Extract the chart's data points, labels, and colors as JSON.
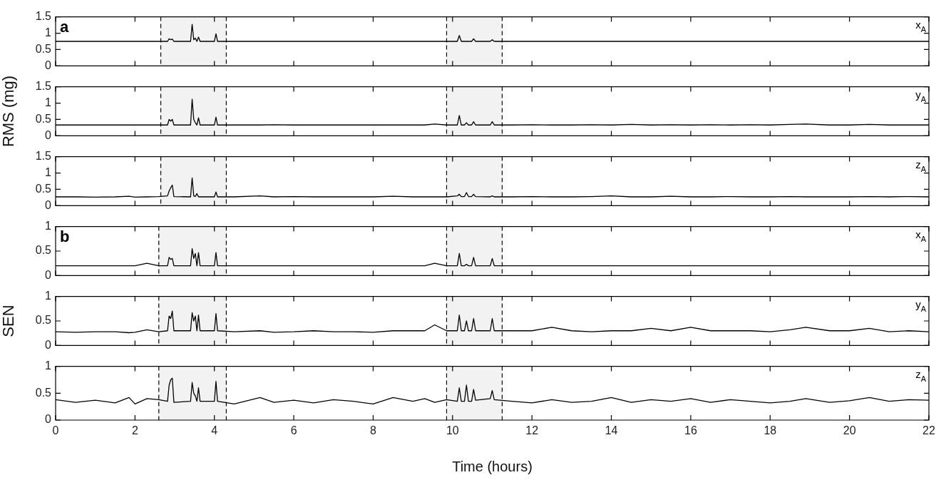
{
  "chart_data": [
    {
      "type": "line",
      "annotations": [
        "a"
      ],
      "tick_labels": "y",
      "xlim": [
        0,
        22
      ],
      "xticks": [
        0,
        2,
        4,
        6,
        8,
        10,
        12,
        14,
        16,
        18,
        20,
        22
      ],
      "ylim": [
        0,
        1.5
      ],
      "yticks": [
        0,
        0.5,
        1,
        1.5
      ],
      "bands": [
        {
          "axis": "x",
          "from": 2.65,
          "to": 4.3,
          "color": "#f2f2f2"
        },
        {
          "axis": "x",
          "from": 9.85,
          "to": 11.25,
          "color": "#f2f2f2"
        }
      ],
      "x": [
        0,
        0.5,
        1,
        1.5,
        1.85,
        2,
        2.3,
        2.6,
        2.82,
        2.86,
        2.9,
        2.94,
        2.98,
        3.4,
        3.44,
        3.48,
        3.52,
        3.56,
        3.6,
        3.64,
        3.68,
        4.0,
        4.04,
        4.08,
        4.5,
        5.15,
        5.5,
        6,
        6.5,
        7,
        7.5,
        8,
        8.5,
        9,
        9.3,
        9.55,
        9.85,
        10.12,
        10.17,
        10.22,
        10.3,
        10.35,
        10.4,
        10.48,
        10.53,
        10.58,
        10.95,
        11,
        11.05,
        11.5,
        12,
        12.5,
        13,
        13.5,
        14,
        14.5,
        15,
        15.5,
        16,
        16.5,
        17,
        17.5,
        18,
        18.5,
        18.9,
        19.5,
        20,
        20.5,
        21,
        21.5,
        22
      ],
      "series": [
        {
          "name": "x$_{A}$",
          "color": "#000000",
          "values": [
            0.75,
            0.75,
            0.75,
            0.75,
            0.75,
            0.75,
            0.75,
            0.75,
            0.75,
            0.83,
            0.8,
            0.82,
            0.75,
            0.75,
            1.27,
            0.8,
            0.85,
            0.75,
            0.88,
            0.75,
            0.75,
            0.75,
            0.98,
            0.75,
            0.75,
            0.75,
            0.75,
            0.75,
            0.75,
            0.75,
            0.75,
            0.75,
            0.75,
            0.75,
            0.75,
            0.75,
            0.75,
            0.75,
            0.93,
            0.75,
            0.75,
            0.75,
            0.75,
            0.75,
            0.83,
            0.75,
            0.75,
            0.8,
            0.75,
            0.75,
            0.75,
            0.75,
            0.75,
            0.75,
            0.75,
            0.75,
            0.75,
            0.75,
            0.75,
            0.75,
            0.75,
            0.75,
            0.75,
            0.75,
            0.75,
            0.75,
            0.75,
            0.75,
            0.75,
            0.75,
            0.75
          ]
        }
      ]
    },
    {
      "type": "line",
      "ylabel": "RMS (mg)",
      "tick_labels": "y",
      "xlim": [
        0,
        22
      ],
      "xticks": [
        0,
        2,
        4,
        6,
        8,
        10,
        12,
        14,
        16,
        18,
        20,
        22
      ],
      "ylim": [
        0,
        1.5
      ],
      "yticks": [
        0,
        0.5,
        1,
        1.5
      ],
      "bands": [
        {
          "axis": "x",
          "from": 2.65,
          "to": 4.3,
          "color": "#f2f2f2"
        },
        {
          "axis": "x",
          "from": 9.85,
          "to": 11.25,
          "color": "#f2f2f2"
        }
      ],
      "x": [
        0,
        0.5,
        1,
        1.5,
        1.85,
        2,
        2.3,
        2.6,
        2.82,
        2.86,
        2.9,
        2.94,
        2.98,
        3.4,
        3.44,
        3.48,
        3.52,
        3.56,
        3.6,
        3.64,
        3.68,
        4.0,
        4.04,
        4.08,
        4.5,
        5.15,
        5.5,
        6,
        6.5,
        7,
        7.5,
        8,
        8.5,
        9,
        9.3,
        9.55,
        9.85,
        10.12,
        10.17,
        10.22,
        10.3,
        10.35,
        10.4,
        10.48,
        10.53,
        10.58,
        10.95,
        11,
        11.05,
        11.5,
        12,
        12.5,
        13,
        13.5,
        14,
        14.5,
        15,
        15.5,
        16,
        16.5,
        17,
        17.5,
        18,
        18.5,
        18.9,
        19.5,
        20,
        20.5,
        21,
        21.5,
        22
      ],
      "series": [
        {
          "name": "y$_{A}$",
          "color": "#000000",
          "values": [
            0.33,
            0.33,
            0.33,
            0.33,
            0.33,
            0.33,
            0.33,
            0.33,
            0.33,
            0.5,
            0.45,
            0.5,
            0.33,
            0.33,
            1.12,
            0.5,
            0.4,
            0.33,
            0.55,
            0.33,
            0.33,
            0.33,
            0.57,
            0.33,
            0.33,
            0.33,
            0.34,
            0.33,
            0.33,
            0.33,
            0.33,
            0.33,
            0.33,
            0.33,
            0.33,
            0.36,
            0.33,
            0.33,
            0.62,
            0.33,
            0.33,
            0.4,
            0.33,
            0.33,
            0.43,
            0.33,
            0.33,
            0.43,
            0.33,
            0.33,
            0.34,
            0.33,
            0.33,
            0.34,
            0.33,
            0.35,
            0.33,
            0.34,
            0.33,
            0.34,
            0.33,
            0.34,
            0.33,
            0.35,
            0.36,
            0.33,
            0.33,
            0.35,
            0.33,
            0.33,
            0.33
          ]
        }
      ]
    },
    {
      "type": "line",
      "tick_labels": "y",
      "xlim": [
        0,
        22
      ],
      "xticks": [
        0,
        2,
        4,
        6,
        8,
        10,
        12,
        14,
        16,
        18,
        20,
        22
      ],
      "ylim": [
        0,
        1.5
      ],
      "yticks": [
        0,
        0.5,
        1,
        1.5
      ],
      "bands": [
        {
          "axis": "x",
          "from": 2.65,
          "to": 4.3,
          "color": "#f2f2f2"
        },
        {
          "axis": "x",
          "from": 9.85,
          "to": 11.25,
          "color": "#f2f2f2"
        }
      ],
      "x": [
        0,
        0.5,
        1,
        1.5,
        1.85,
        2,
        2.3,
        2.6,
        2.82,
        2.86,
        2.9,
        2.94,
        2.98,
        3.4,
        3.44,
        3.48,
        3.52,
        3.56,
        3.6,
        3.64,
        3.68,
        4.0,
        4.04,
        4.08,
        4.5,
        5.15,
        5.5,
        6,
        6.5,
        7,
        7.5,
        8,
        8.5,
        9,
        9.3,
        9.55,
        9.85,
        10.12,
        10.17,
        10.22,
        10.3,
        10.35,
        10.4,
        10.48,
        10.53,
        10.58,
        10.95,
        11,
        11.05,
        11.5,
        12,
        12.5,
        13,
        13.5,
        14,
        14.5,
        15,
        15.5,
        16,
        16.5,
        17,
        17.5,
        18,
        18.5,
        18.9,
        19.5,
        20,
        20.5,
        21,
        21.5,
        22
      ],
      "series": [
        {
          "name": "z$_{A}$",
          "color": "#000000",
          "values": [
            0.27,
            0.27,
            0.26,
            0.27,
            0.29,
            0.26,
            0.27,
            0.28,
            0.3,
            0.45,
            0.55,
            0.63,
            0.28,
            0.27,
            0.85,
            0.3,
            0.28,
            0.37,
            0.27,
            0.27,
            0.27,
            0.27,
            0.42,
            0.27,
            0.27,
            0.3,
            0.27,
            0.28,
            0.27,
            0.27,
            0.27,
            0.27,
            0.29,
            0.27,
            0.27,
            0.27,
            0.27,
            0.3,
            0.35,
            0.28,
            0.28,
            0.4,
            0.28,
            0.28,
            0.35,
            0.28,
            0.27,
            0.3,
            0.27,
            0.27,
            0.28,
            0.27,
            0.27,
            0.28,
            0.3,
            0.27,
            0.27,
            0.29,
            0.27,
            0.27,
            0.28,
            0.27,
            0.27,
            0.28,
            0.27,
            0.27,
            0.27,
            0.28,
            0.27,
            0.28,
            0.27
          ]
        }
      ]
    },
    {
      "type": "line",
      "annotations": [
        "b"
      ],
      "tick_labels": "y",
      "xlim": [
        0,
        22
      ],
      "xticks": [
        0,
        2,
        4,
        6,
        8,
        10,
        12,
        14,
        16,
        18,
        20,
        22
      ],
      "ylim": [
        0,
        1
      ],
      "yticks": [
        0,
        0.5,
        1
      ],
      "bands": [
        {
          "axis": "x",
          "from": 2.6,
          "to": 4.3,
          "color": "#f2f2f2"
        },
        {
          "axis": "x",
          "from": 9.85,
          "to": 11.25,
          "color": "#f2f2f2"
        }
      ],
      "x": [
        0,
        0.5,
        1,
        1.5,
        1.85,
        2,
        2.3,
        2.6,
        2.82,
        2.86,
        2.9,
        2.94,
        2.98,
        3.4,
        3.44,
        3.48,
        3.52,
        3.56,
        3.6,
        3.64,
        3.68,
        4.0,
        4.04,
        4.08,
        4.5,
        5.15,
        5.5,
        6,
        6.5,
        7,
        7.5,
        8,
        8.5,
        9,
        9.3,
        9.55,
        9.85,
        10.12,
        10.17,
        10.22,
        10.3,
        10.35,
        10.4,
        10.48,
        10.53,
        10.58,
        10.95,
        11,
        11.05,
        11.5,
        12,
        12.5,
        13,
        13.5,
        14,
        14.5,
        15,
        15.5,
        16,
        16.5,
        17,
        17.5,
        18,
        18.5,
        18.9,
        19.5,
        20,
        20.5,
        21,
        21.5,
        22
      ],
      "series": [
        {
          "name": "x$_{A}$",
          "color": "#000000",
          "values": [
            0.2,
            0.2,
            0.2,
            0.2,
            0.2,
            0.2,
            0.25,
            0.2,
            0.2,
            0.37,
            0.33,
            0.35,
            0.2,
            0.2,
            0.55,
            0.35,
            0.45,
            0.2,
            0.47,
            0.2,
            0.2,
            0.2,
            0.47,
            0.2,
            0.2,
            0.2,
            0.2,
            0.2,
            0.2,
            0.2,
            0.2,
            0.2,
            0.2,
            0.2,
            0.2,
            0.25,
            0.2,
            0.2,
            0.45,
            0.2,
            0.2,
            0.23,
            0.2,
            0.2,
            0.37,
            0.2,
            0.2,
            0.35,
            0.2,
            0.2,
            0.2,
            0.2,
            0.2,
            0.2,
            0.2,
            0.2,
            0.2,
            0.2,
            0.2,
            0.2,
            0.2,
            0.2,
            0.2,
            0.2,
            0.2,
            0.2,
            0.2,
            0.2,
            0.2,
            0.2,
            0.2
          ]
        }
      ]
    },
    {
      "type": "line",
      "ylabel": "SEN",
      "tick_labels": "y",
      "xlim": [
        0,
        22
      ],
      "xticks": [
        0,
        2,
        4,
        6,
        8,
        10,
        12,
        14,
        16,
        18,
        20,
        22
      ],
      "ylim": [
        0,
        1
      ],
      "yticks": [
        0,
        0.5,
        1
      ],
      "bands": [
        {
          "axis": "x",
          "from": 2.6,
          "to": 4.3,
          "color": "#f2f2f2"
        },
        {
          "axis": "x",
          "from": 9.85,
          "to": 11.25,
          "color": "#f2f2f2"
        }
      ],
      "x": [
        0,
        0.5,
        1,
        1.5,
        1.85,
        2,
        2.3,
        2.6,
        2.82,
        2.86,
        2.9,
        2.94,
        2.98,
        3.4,
        3.44,
        3.48,
        3.52,
        3.56,
        3.6,
        3.64,
        3.68,
        4.0,
        4.04,
        4.08,
        4.5,
        5.15,
        5.5,
        6,
        6.5,
        7,
        7.5,
        8,
        8.5,
        9,
        9.3,
        9.55,
        9.85,
        10.12,
        10.17,
        10.22,
        10.3,
        10.35,
        10.4,
        10.48,
        10.53,
        10.58,
        10.95,
        11,
        11.05,
        11.5,
        12,
        12.5,
        13,
        13.5,
        14,
        14.5,
        15,
        15.5,
        16,
        16.5,
        17,
        17.5,
        18,
        18.5,
        18.9,
        19.5,
        20,
        20.5,
        21,
        21.5,
        22
      ],
      "series": [
        {
          "name": "y$_{A}$",
          "color": "#000000",
          "values": [
            0.28,
            0.27,
            0.28,
            0.28,
            0.26,
            0.27,
            0.32,
            0.28,
            0.3,
            0.6,
            0.55,
            0.7,
            0.3,
            0.3,
            0.67,
            0.5,
            0.6,
            0.3,
            0.62,
            0.3,
            0.3,
            0.3,
            0.65,
            0.3,
            0.28,
            0.3,
            0.27,
            0.28,
            0.3,
            0.28,
            0.28,
            0.27,
            0.3,
            0.3,
            0.3,
            0.42,
            0.3,
            0.3,
            0.62,
            0.3,
            0.3,
            0.5,
            0.3,
            0.3,
            0.55,
            0.3,
            0.3,
            0.55,
            0.3,
            0.3,
            0.3,
            0.37,
            0.3,
            0.28,
            0.3,
            0.3,
            0.35,
            0.3,
            0.37,
            0.3,
            0.3,
            0.3,
            0.28,
            0.32,
            0.37,
            0.3,
            0.3,
            0.35,
            0.28,
            0.3,
            0.28
          ]
        }
      ]
    },
    {
      "type": "line",
      "xlabel": "Time (hours)",
      "xlim": [
        0,
        22
      ],
      "xticks": [
        0,
        2,
        4,
        6,
        8,
        10,
        12,
        14,
        16,
        18,
        20,
        22
      ],
      "ylim": [
        0,
        1
      ],
      "yticks": [
        0,
        0.5,
        1
      ],
      "bands": [
        {
          "axis": "x",
          "from": 2.6,
          "to": 4.3,
          "color": "#f2f2f2"
        },
        {
          "axis": "x",
          "from": 9.85,
          "to": 11.25,
          "color": "#f2f2f2"
        }
      ],
      "x": [
        0,
        0.5,
        1,
        1.5,
        1.85,
        2,
        2.3,
        2.6,
        2.82,
        2.86,
        2.9,
        2.94,
        2.98,
        3.4,
        3.44,
        3.48,
        3.52,
        3.56,
        3.6,
        3.64,
        3.68,
        4.0,
        4.04,
        4.08,
        4.5,
        5.15,
        5.5,
        6,
        6.5,
        7,
        7.5,
        8,
        8.5,
        9,
        9.3,
        9.55,
        9.85,
        10.12,
        10.17,
        10.22,
        10.3,
        10.35,
        10.4,
        10.48,
        10.53,
        10.58,
        10.95,
        11,
        11.05,
        11.5,
        12,
        12.5,
        13,
        13.5,
        14,
        14.5,
        15,
        15.5,
        16,
        16.5,
        17,
        17.5,
        18,
        18.5,
        18.9,
        19.5,
        20,
        20.5,
        21,
        21.5,
        22
      ],
      "series": [
        {
          "name": "z$_{A}$",
          "color": "#000000",
          "values": [
            0.38,
            0.33,
            0.37,
            0.32,
            0.42,
            0.3,
            0.4,
            0.38,
            0.35,
            0.65,
            0.75,
            0.78,
            0.33,
            0.35,
            0.7,
            0.5,
            0.45,
            0.35,
            0.6,
            0.35,
            0.35,
            0.35,
            0.72,
            0.35,
            0.3,
            0.42,
            0.33,
            0.37,
            0.32,
            0.38,
            0.35,
            0.3,
            0.42,
            0.35,
            0.4,
            0.33,
            0.38,
            0.35,
            0.6,
            0.35,
            0.35,
            0.65,
            0.35,
            0.35,
            0.57,
            0.37,
            0.4,
            0.55,
            0.38,
            0.35,
            0.32,
            0.38,
            0.33,
            0.35,
            0.42,
            0.33,
            0.38,
            0.35,
            0.4,
            0.33,
            0.38,
            0.35,
            0.32,
            0.35,
            0.4,
            0.33,
            0.36,
            0.42,
            0.35,
            0.38,
            0.37
          ]
        }
      ]
    }
  ]
}
